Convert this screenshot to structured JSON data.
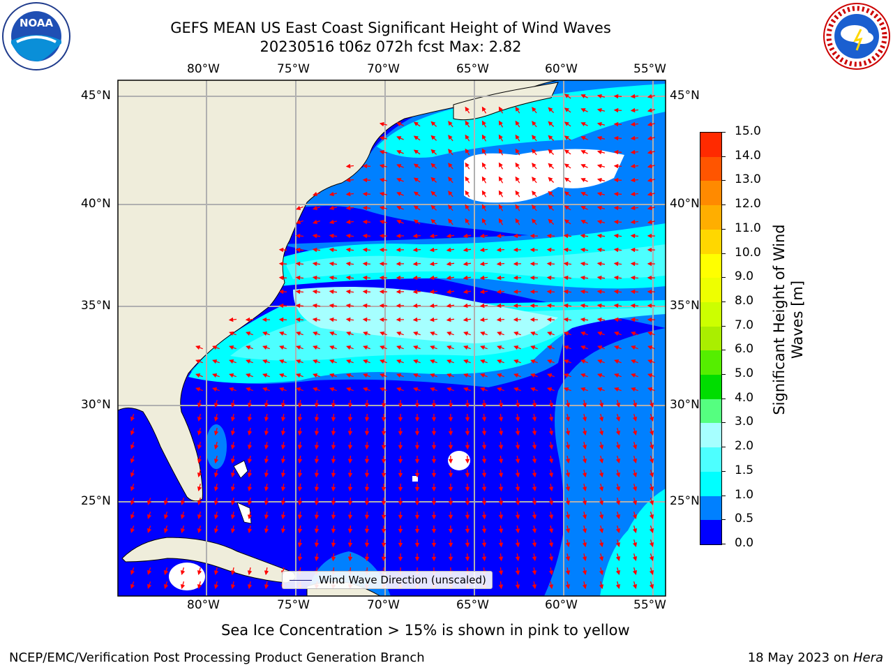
{
  "title": {
    "line1": "GEFS MEAN US East Coast Significant Height of Wind Waves",
    "line2": "20230516 t06z 072h fcst   Max: 2.82"
  },
  "logos": {
    "left": "noaa-logo",
    "right": "national-weather-service-logo",
    "left_text": "NOAA",
    "right_text": "NATIONAL WEATHER SERVICE"
  },
  "map": {
    "lon_ticks": [
      "80°W",
      "75°W",
      "70°W",
      "65°W",
      "60°W",
      "55°W"
    ],
    "lat_ticks": [
      "45°N",
      "40°N",
      "35°N",
      "30°N",
      "25°N"
    ],
    "legend": "Wind Wave Direction (unscaled)",
    "colors": {
      "land": "#efeddb",
      "no_data": "#ffffff",
      "grid": "#b0b0b0",
      "arrow": "#ff0000"
    }
  },
  "colorbar": {
    "title": "Significant Height of Wind Waves [m]",
    "ticks": [
      "0.0",
      "0.5",
      "1.0",
      "1.5",
      "2.0",
      "3.0",
      "4.0",
      "5.0",
      "6.0",
      "7.0",
      "8.0",
      "9.0",
      "10.0",
      "11.0",
      "12.0",
      "13.0",
      "14.0",
      "15.0"
    ],
    "colors": [
      "#0000ff",
      "#0080ff",
      "#00ffff",
      "#4dffff",
      "#a6ffff",
      "#55ff80",
      "#00dd00",
      "#55ee00",
      "#aaee00",
      "#ccff00",
      "#eeff00",
      "#ffff00",
      "#ffd700",
      "#ffae00",
      "#ff8a00",
      "#ff5500",
      "#ff2a00",
      "#ff0000"
    ]
  },
  "footer": {
    "note": "Sea Ice Concentration > 15% is shown in pink to yellow",
    "left": "NCEP/EMC/Verification Post Processing Product Generation Branch",
    "right_date": "18 May 2023 on ",
    "right_host": "Hera"
  }
}
